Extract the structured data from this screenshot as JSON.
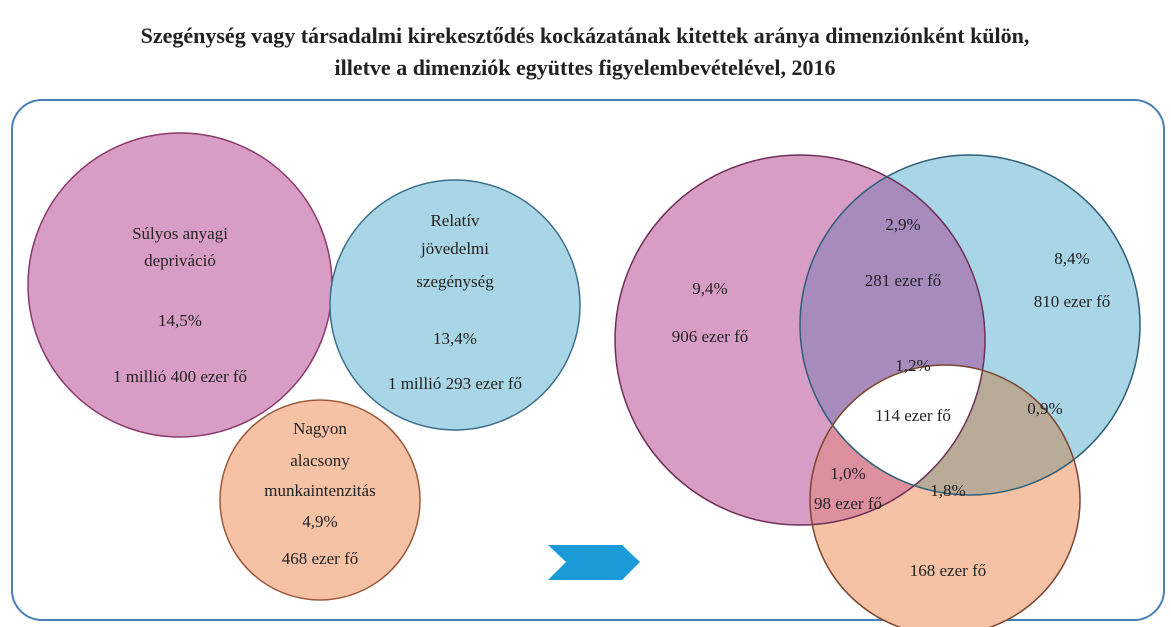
{
  "title": [
    "Szegénység vagy társadalmi kirekesztődés kockázatának kitettek aránya dimenziónként külön,",
    "illetve a dimenziók együttes figyelembevételével, 2016"
  ],
  "dimensions": [
    {
      "label": [
        "Súlyos anyagi",
        "depriváció"
      ],
      "percent": "14,5%",
      "count": "1 millió 400 ezer fő"
    },
    {
      "label": [
        "Relatív",
        "jövedelmi",
        "szegénység"
      ],
      "percent": "13,4%",
      "count": "1 millió 293 ezer fő"
    },
    {
      "label": [
        "Nagyon",
        "alacsony",
        "munkaintenzitás"
      ],
      "percent": "4,9%",
      "count": "468 ezer fő"
    }
  ],
  "venn": [
    {
      "percent": "9,4%",
      "count": "906 ezer fő"
    },
    {
      "percent": "2,9%",
      "count": "281 ezer fő"
    },
    {
      "percent": "8,4%",
      "count": "810 ezer fő"
    },
    {
      "percent": "1,2%",
      "count": "114 ezer fő"
    },
    {
      "percent": "0,9%"
    },
    {
      "percent": "1,0%",
      "count": "98 ezer fő"
    },
    {
      "percent": "1,8%",
      "count": "168 ezer fő"
    }
  ]
}
